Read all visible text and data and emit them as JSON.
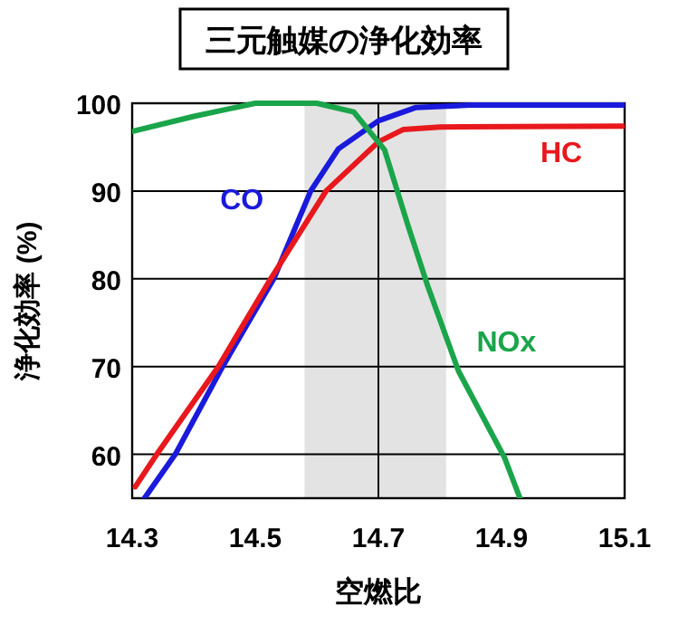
{
  "chart_data": {
    "type": "line",
    "title": "三元触媒の浄化効率",
    "xlabel": "空燃比",
    "ylabel": "浄化効率 (%)",
    "xlim": [
      14.3,
      15.1
    ],
    "xticks": [
      {
        "value": 14.3,
        "label": "14.3"
      },
      {
        "value": 14.5,
        "label": "14.5"
      },
      {
        "value": 14.7,
        "label": "14.7"
      },
      {
        "value": 14.9,
        "label": "14.9"
      },
      {
        "value": 15.1,
        "label": "15.1"
      }
    ],
    "ylim": [
      55,
      100
    ],
    "yticks": [
      60,
      70,
      80,
      90,
      100
    ],
    "grid": "y",
    "ref_lines": [
      {
        "axis": "x",
        "value": 14.7,
        "color": "#000000"
      }
    ],
    "bands": [
      {
        "axis": "x",
        "from": 14.58,
        "to": 14.81,
        "color": "#e3e3e3"
      }
    ],
    "series": [
      {
        "name": "CO",
        "color": "#1a1adc",
        "x": [
          14.32,
          14.37,
          14.447,
          14.53,
          14.59,
          14.635,
          14.7,
          14.76,
          14.85,
          15.1
        ],
        "values": [
          55,
          60,
          70,
          80,
          90,
          94.8,
          98,
          99.5,
          99.8,
          99.8
        ]
      },
      {
        "name": "HC",
        "color": "#e8181c",
        "x": [
          14.305,
          14.34,
          14.44,
          14.525,
          14.615,
          14.7,
          14.74,
          14.8,
          15.1
        ],
        "values": [
          56.3,
          60,
          70,
          80,
          90,
          95.6,
          97,
          97.3,
          97.4
        ]
      },
      {
        "name": "NOx",
        "color": "#1aa54a",
        "x": [
          14.3,
          14.4,
          14.5,
          14.6,
          14.66,
          14.71,
          14.747,
          14.78,
          14.83,
          14.905,
          14.93
        ],
        "values": [
          96.8,
          98.5,
          100,
          100,
          99,
          94.7,
          86.3,
          79.2,
          69.5,
          59.6,
          55
        ]
      }
    ]
  }
}
